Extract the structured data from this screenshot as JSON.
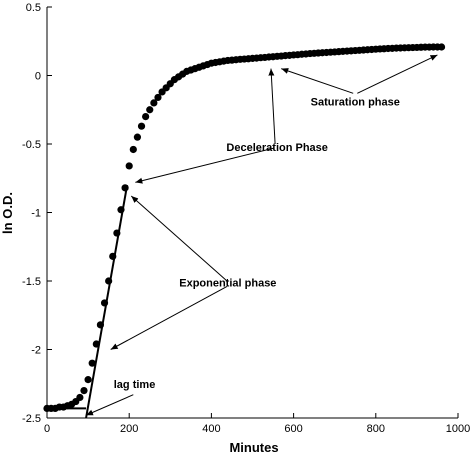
{
  "chart_data": {
    "type": "scatter",
    "xlabel": "Minutes",
    "ylabel": "ln O.D.",
    "xlim": [
      0,
      1000
    ],
    "ylim": [
      -2.5,
      0.5
    ],
    "xticks": [
      "0",
      "200",
      "400",
      "600",
      "800",
      "1000"
    ],
    "yticks": [
      "-2.5",
      "-2",
      "-1.5",
      "-1",
      "-0.5",
      "0",
      "0.5"
    ],
    "grid": false,
    "series": [
      {
        "x": [
          0,
          10,
          20,
          30,
          40,
          50,
          60,
          70,
          80,
          90,
          100,
          110,
          120,
          130,
          140,
          150,
          160,
          170,
          180,
          190,
          200,
          210,
          220,
          230,
          240,
          250,
          260,
          270,
          280,
          290,
          300,
          310,
          320,
          330,
          340,
          350,
          360,
          370,
          380,
          390,
          400,
          410,
          420,
          430,
          440,
          450,
          460,
          470,
          480,
          490,
          500,
          510,
          520,
          530,
          540,
          550,
          560,
          570,
          580,
          590,
          600,
          610,
          620,
          630,
          640,
          650,
          660,
          670,
          680,
          690,
          700,
          710,
          720,
          730,
          740,
          750,
          760,
          770,
          780,
          790,
          800,
          810,
          820,
          830,
          840,
          850,
          860,
          870,
          880,
          890,
          900,
          910,
          920,
          930,
          940,
          950,
          960
        ],
        "y": [
          -2.43,
          -2.43,
          -2.43,
          -2.42,
          -2.42,
          -2.41,
          -2.4,
          -2.38,
          -2.35,
          -2.3,
          -2.22,
          -2.1,
          -1.96,
          -1.82,
          -1.66,
          -1.5,
          -1.32,
          -1.15,
          -0.98,
          -0.82,
          -0.66,
          -0.54,
          -0.45,
          -0.37,
          -0.3,
          -0.25,
          -0.2,
          -0.16,
          -0.12,
          -0.09,
          -0.06,
          -0.03,
          -0.01,
          0.01,
          0.03,
          0.04,
          0.05,
          0.06,
          0.07,
          0.08,
          0.09,
          0.095,
          0.1,
          0.105,
          0.11,
          0.112,
          0.115,
          0.118,
          0.12,
          0.122,
          0.125,
          0.127,
          0.13,
          0.132,
          0.135,
          0.137,
          0.14,
          0.142,
          0.145,
          0.147,
          0.15,
          0.152,
          0.155,
          0.157,
          0.16,
          0.162,
          0.164,
          0.166,
          0.168,
          0.17,
          0.172,
          0.174,
          0.176,
          0.178,
          0.18,
          0.182,
          0.184,
          0.186,
          0.188,
          0.19,
          0.192,
          0.194,
          0.195,
          0.197,
          0.198,
          0.2,
          0.201,
          0.202,
          0.203,
          0.204,
          0.205,
          0.206,
          0.207,
          0.207,
          0.208,
          0.208,
          0.208
        ]
      }
    ],
    "fit_lines": [
      {
        "x": [
          0,
          95
        ],
        "y": [
          -2.43,
          -2.43
        ]
      },
      {
        "x": [
          95,
          195
        ],
        "y": [
          -2.5,
          -0.8
        ]
      }
    ],
    "annotations": [
      {
        "text": "Saturation phase",
        "x": 750,
        "y": -0.22,
        "arrows": [
          {
            "x1": 745,
            "y1": -0.13,
            "x2": 570,
            "y2": 0.05
          },
          {
            "x1": 755,
            "y1": -0.13,
            "x2": 950,
            "y2": 0.15
          }
        ]
      },
      {
        "text": "Deceleration Phase",
        "x": 560,
        "y": -0.55,
        "arrows": [
          {
            "x1": 555,
            "y1": -0.5,
            "x2": 545,
            "y2": 0.05
          },
          {
            "x1": 552,
            "y1": -0.53,
            "x2": 215,
            "y2": -0.78
          }
        ]
      },
      {
        "text": "Exponential phase",
        "x": 440,
        "y": -1.54,
        "arrows": [
          {
            "x1": 438,
            "y1": -1.5,
            "x2": 205,
            "y2": -0.88
          },
          {
            "x1": 438,
            "y1": -1.54,
            "x2": 155,
            "y2": -2.0
          }
        ]
      },
      {
        "text": "lag time",
        "x": 213,
        "y": -2.28,
        "arrows": [
          {
            "x1": 210,
            "y1": -2.33,
            "x2": 95,
            "y2": -2.48
          }
        ]
      }
    ]
  }
}
